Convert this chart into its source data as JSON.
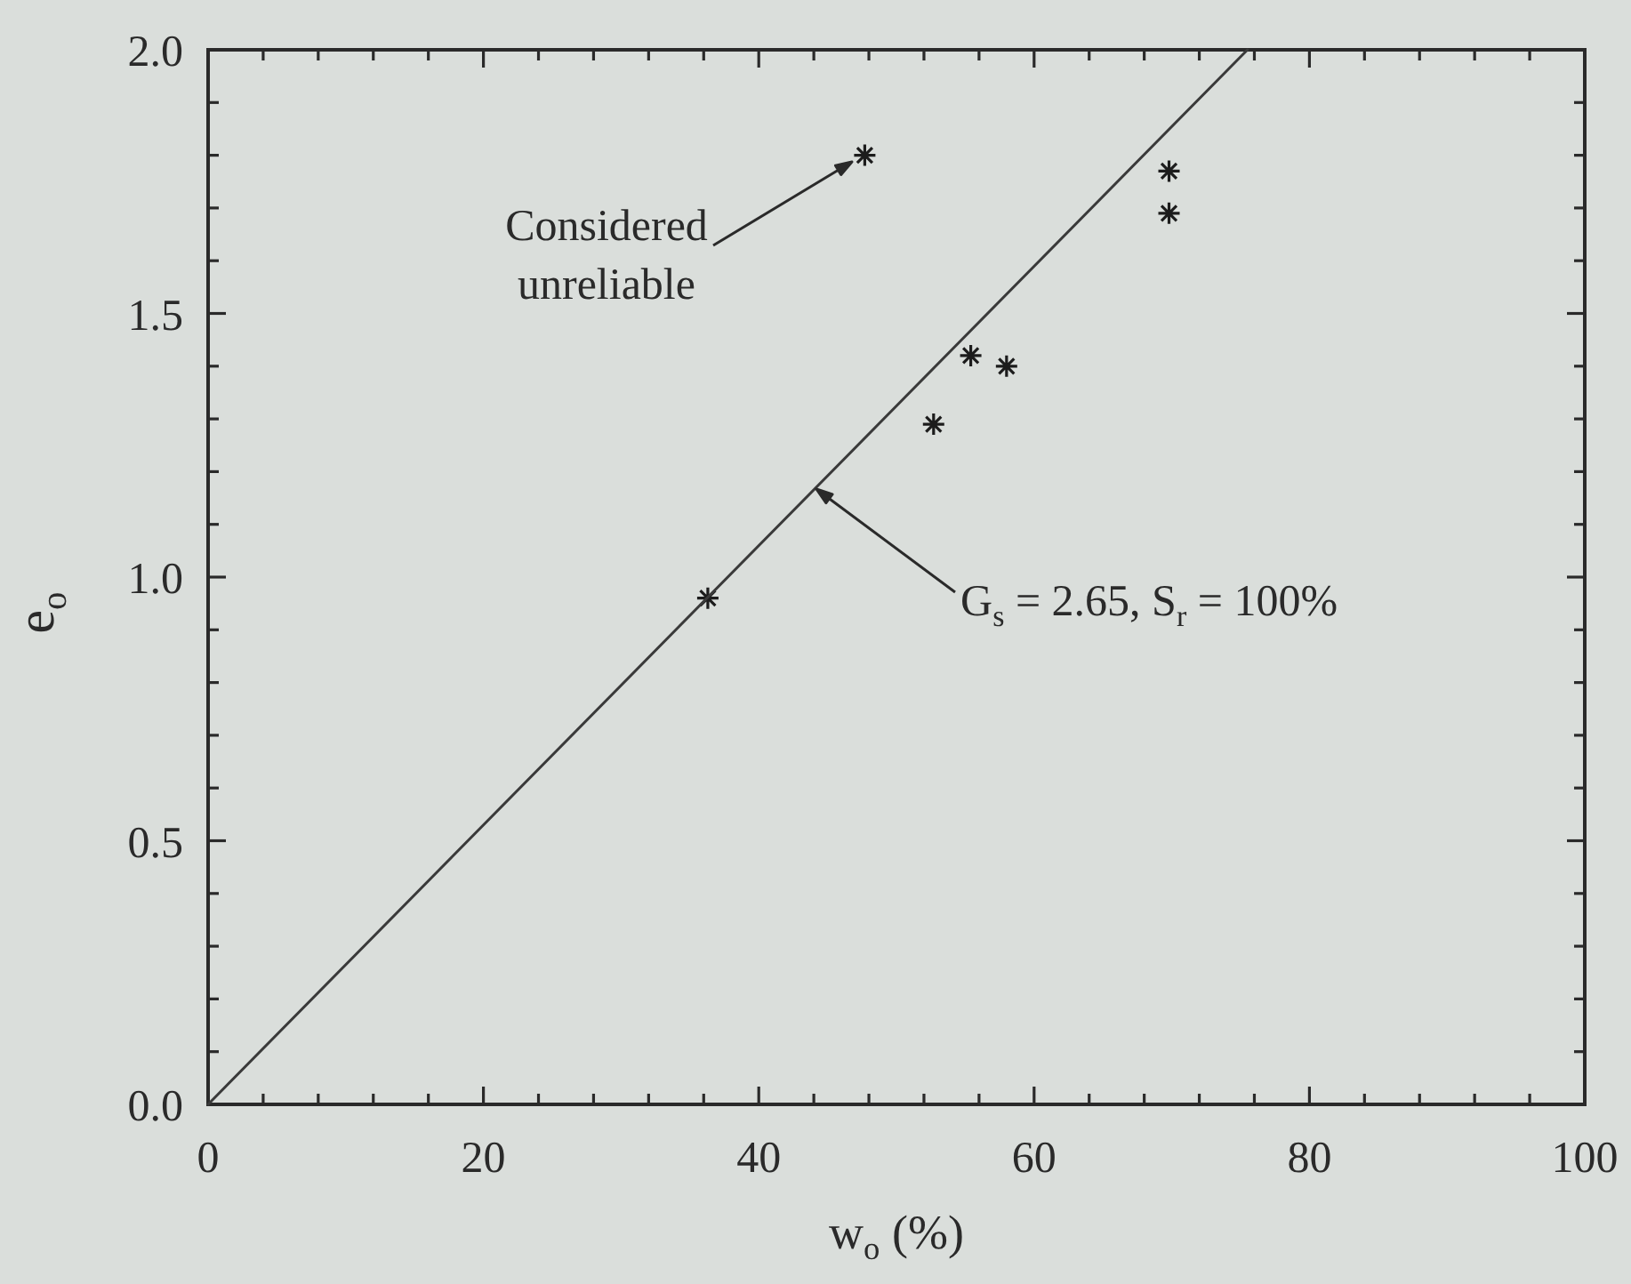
{
  "chart_data": {
    "type": "scatter",
    "xlabel": "w$_{o}$ (%)",
    "ylabel": "e$_{o}$",
    "xlim": [
      0,
      100
    ],
    "ylim": [
      0,
      2.0
    ],
    "xticks": [
      0,
      {
        "value": 4,
        "label": null
      },
      {
        "value": 8,
        "label": null
      },
      {
        "value": 12,
        "label": null
      },
      {
        "value": 16,
        "label": null
      },
      20,
      {
        "value": 24,
        "label": null
      },
      {
        "value": 28,
        "label": null
      },
      {
        "value": 32,
        "label": null
      },
      {
        "value": 36,
        "label": null
      },
      40,
      {
        "value": 44,
        "label": null
      },
      {
        "value": 48,
        "label": null
      },
      {
        "value": 52,
        "label": null
      },
      {
        "value": 56,
        "label": null
      },
      60,
      {
        "value": 64,
        "label": null
      },
      {
        "value": 68,
        "label": null
      },
      {
        "value": 72,
        "label": null
      },
      {
        "value": 76,
        "label": null
      },
      80,
      {
        "value": 84,
        "label": null
      },
      {
        "value": 88,
        "label": null
      },
      {
        "value": 92,
        "label": null
      },
      {
        "value": 96,
        "label": null
      },
      100
    ],
    "yticks": [
      {
        "value": 0,
        "label": "0.0"
      },
      {
        "value": 0.1,
        "label": null
      },
      {
        "value": 0.2,
        "label": null
      },
      {
        "value": 0.3,
        "label": null
      },
      {
        "value": 0.4,
        "label": null
      },
      {
        "value": 0.5,
        "label": "0.5"
      },
      {
        "value": 0.6,
        "label": null
      },
      {
        "value": 0.7,
        "label": null
      },
      {
        "value": 0.8,
        "label": null
      },
      {
        "value": 0.9,
        "label": null
      },
      {
        "value": 1.0,
        "label": "1.0"
      },
      {
        "value": 1.1,
        "label": null
      },
      {
        "value": 1.2,
        "label": null
      },
      {
        "value": 1.3,
        "label": null
      },
      {
        "value": 1.4,
        "label": null
      },
      {
        "value": 1.5,
        "label": "1.5"
      },
      {
        "value": 1.6,
        "label": null
      },
      {
        "value": 1.7,
        "label": null
      },
      {
        "value": 1.8,
        "label": null
      },
      {
        "value": 1.9,
        "label": null
      },
      {
        "value": 2.0,
        "label": "2.0"
      }
    ],
    "series": [
      {
        "color": "#1c1c1c",
        "marker": "cross",
        "x": [
          36.3,
          47.7,
          52.7,
          55.4,
          58.0,
          69.8,
          69.8
        ],
        "values": [
          0.96,
          1.8,
          1.29,
          1.42,
          1.4,
          1.77,
          1.69
        ]
      },
      {
        "type": "line",
        "color": "#3a3a3a",
        "line_style": "solid",
        "x": [
          0,
          75.5
        ],
        "values": [
          0,
          2.0
        ]
      }
    ],
    "annotations": [
      "Considered unreliable",
      "G$_{s}$ = 2.65, S$_{r}$ = 100%"
    ]
  }
}
